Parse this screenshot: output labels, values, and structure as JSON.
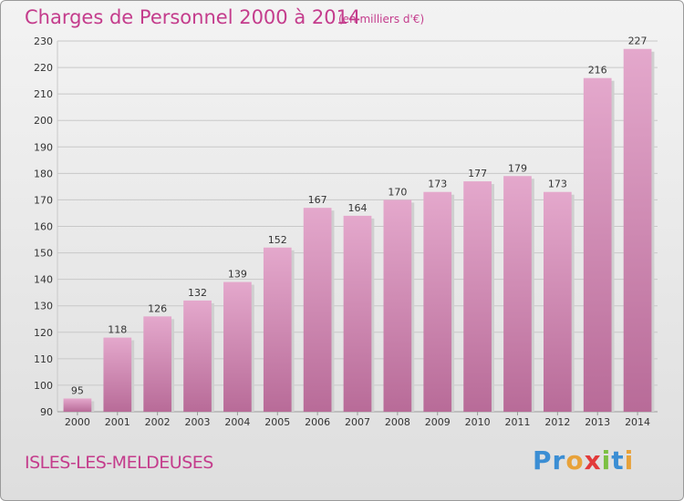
{
  "title": "Charges de Personnel 2000 à 2014",
  "subtitle": "(en milliers d'€)",
  "commune": "ISLES-LES-MELDEUSES",
  "logo": {
    "letters": [
      {
        "ch": "P",
        "color": "#3b8ed4"
      },
      {
        "ch": "r",
        "color": "#3b8ed4"
      },
      {
        "ch": "o",
        "color": "#e8a23a"
      },
      {
        "ch": "x",
        "color": "#e23a3a"
      },
      {
        "ch": "i",
        "color": "#7cc043"
      },
      {
        "ch": "t",
        "color": "#3b8ed4"
      },
      {
        "ch": "i",
        "color": "#e8a23a"
      }
    ]
  },
  "colors": {
    "bar_top": "#e4a8cc",
    "bar_bottom": "#b86b98",
    "accent": "#c43c8c"
  },
  "chart_data": {
    "type": "bar",
    "categories": [
      "2000",
      "2001",
      "2002",
      "2003",
      "2004",
      "2005",
      "2006",
      "2007",
      "2008",
      "2009",
      "2010",
      "2011",
      "2012",
      "2013",
      "2014"
    ],
    "values": [
      95,
      118,
      126,
      132,
      139,
      152,
      167,
      164,
      170,
      173,
      177,
      179,
      173,
      216,
      227
    ],
    "ylim": [
      90,
      230
    ],
    "yticks": [
      90,
      100,
      110,
      120,
      130,
      140,
      150,
      160,
      170,
      180,
      190,
      200,
      210,
      220,
      230
    ],
    "grid": true,
    "xlabel": "",
    "ylabel": ""
  }
}
